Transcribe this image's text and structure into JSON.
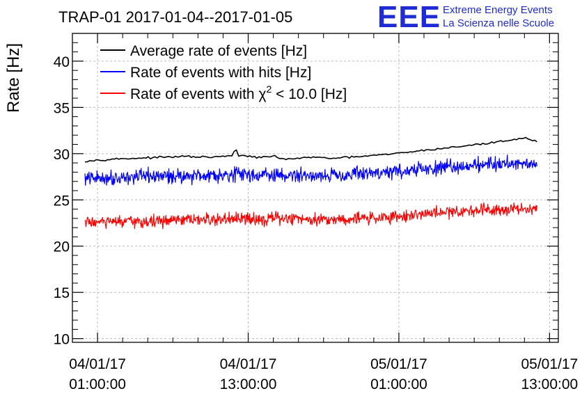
{
  "logo": {
    "letters": "EEE",
    "line1": "Extreme Energy Events",
    "line2": "La Scienza nelle Scuole"
  },
  "chart_data": {
    "type": "line",
    "title": "TRAP-01 2017-01-04--2017-01-05",
    "ylabel": "Rate [Hz]",
    "xlabel": "",
    "ylim": [
      9.6,
      43
    ],
    "yticks": [
      10,
      15,
      20,
      25,
      30,
      35,
      40
    ],
    "xlim_hours": [
      -1.0,
      37.7
    ],
    "x_start_hours": 0.0,
    "x_end_hours": 36.0,
    "xticks": [
      {
        "hours": 1,
        "date": "04/01/17",
        "time": "01:00:00"
      },
      {
        "hours": 13,
        "date": "04/01/17",
        "time": "13:00:00"
      },
      {
        "hours": 25,
        "date": "05/01/17",
        "time": "01:00:00"
      },
      {
        "hours": 37,
        "date": "05/01/17",
        "time": "13:00:00"
      }
    ],
    "grid": true,
    "legend_position": "top-left",
    "series": [
      {
        "name": "Average rate of events [Hz]",
        "color": "#000000",
        "width": 1.6,
        "points_hours": [
          0.0,
          2.0,
          4.0,
          6.0,
          8.0,
          10.0,
          12.0,
          14.0,
          15.0,
          16.0,
          18.0,
          20.0,
          22.0,
          24.0,
          26.0,
          28.0,
          30.0,
          32.0,
          34.0,
          35.0,
          36.0
        ],
        "points_values": [
          29.2,
          29.4,
          29.5,
          29.6,
          29.7,
          29.6,
          29.8,
          29.6,
          29.7,
          29.4,
          29.6,
          29.5,
          29.7,
          29.9,
          30.2,
          30.5,
          30.8,
          31.1,
          31.5,
          31.7,
          31.3
        ],
        "spikes": [
          {
            "hours": 12.0,
            "value": 30.6
          }
        ],
        "noise": 0.15,
        "samples": 200
      },
      {
        "name": "Rate of events with hits [Hz]",
        "color": "#0000ff",
        "width": 1.2,
        "points_hours": [
          0.0,
          4.0,
          8.0,
          12.0,
          16.0,
          20.0,
          24.0,
          28.0,
          32.0,
          36.0
        ],
        "points_values": [
          27.3,
          27.5,
          27.6,
          27.8,
          27.6,
          27.7,
          28.0,
          28.4,
          28.9,
          29.0
        ],
        "noise": 1.15,
        "samples": 900
      },
      {
        "name": "Rate of events with χ² < 10.0 [Hz]",
        "legend_prefix": "Rate of events with ",
        "legend_symbol": "χ",
        "legend_superscript": "2",
        "legend_suffix": " < 10.0 [Hz]",
        "color": "#ff0000",
        "width": 1.2,
        "points_hours": [
          0.0,
          4.0,
          8.0,
          12.0,
          16.0,
          20.0,
          24.0,
          28.0,
          32.0,
          36.0
        ],
        "points_values": [
          22.6,
          22.6,
          22.8,
          22.9,
          23.0,
          22.9,
          23.1,
          23.6,
          24.0,
          24.1
        ],
        "noise": 1.0,
        "samples": 900
      }
    ]
  }
}
